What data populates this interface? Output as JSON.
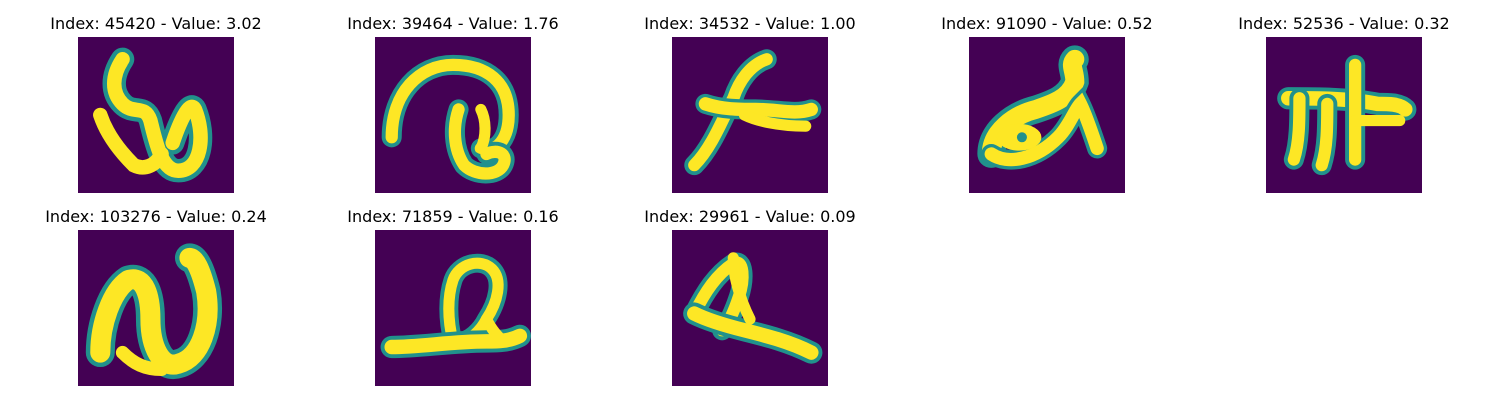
{
  "figure": {
    "colormap": "viridis",
    "background_color": "#440154",
    "stroke_color": "#fde725",
    "edge_color": "#21918c",
    "panels": [
      {
        "title": "Index: 45420 - Value: 3.02",
        "index": 45420,
        "value": 3.02,
        "glyph": "glyph-w"
      },
      {
        "title": "Index: 39464 - Value: 1.76",
        "index": 39464,
        "value": 1.76,
        "glyph": "glyph-arc-loop"
      },
      {
        "title": "Index: 34532 - Value: 1.00",
        "index": 34532,
        "value": 1.0,
        "glyph": "glyph-plane"
      },
      {
        "title": "Index: 91090 - Value: 0.52",
        "index": 91090,
        "value": 0.52,
        "glyph": "glyph-fish"
      },
      {
        "title": "Index: 52536 - Value: 0.32",
        "index": 52536,
        "value": 0.32,
        "glyph": "glyph-pi-cross"
      },
      {
        "title": "Index: 103276 - Value: 0.24",
        "index": 103276,
        "value": 0.24,
        "glyph": "glyph-n"
      },
      {
        "title": "Index: 71859 - Value: 0.16",
        "index": 71859,
        "value": 0.16,
        "glyph": "glyph-q-base"
      },
      {
        "title": "Index: 29961 - Value: 0.09",
        "index": 29961,
        "value": 0.09,
        "glyph": "glyph-a-tail"
      }
    ]
  }
}
